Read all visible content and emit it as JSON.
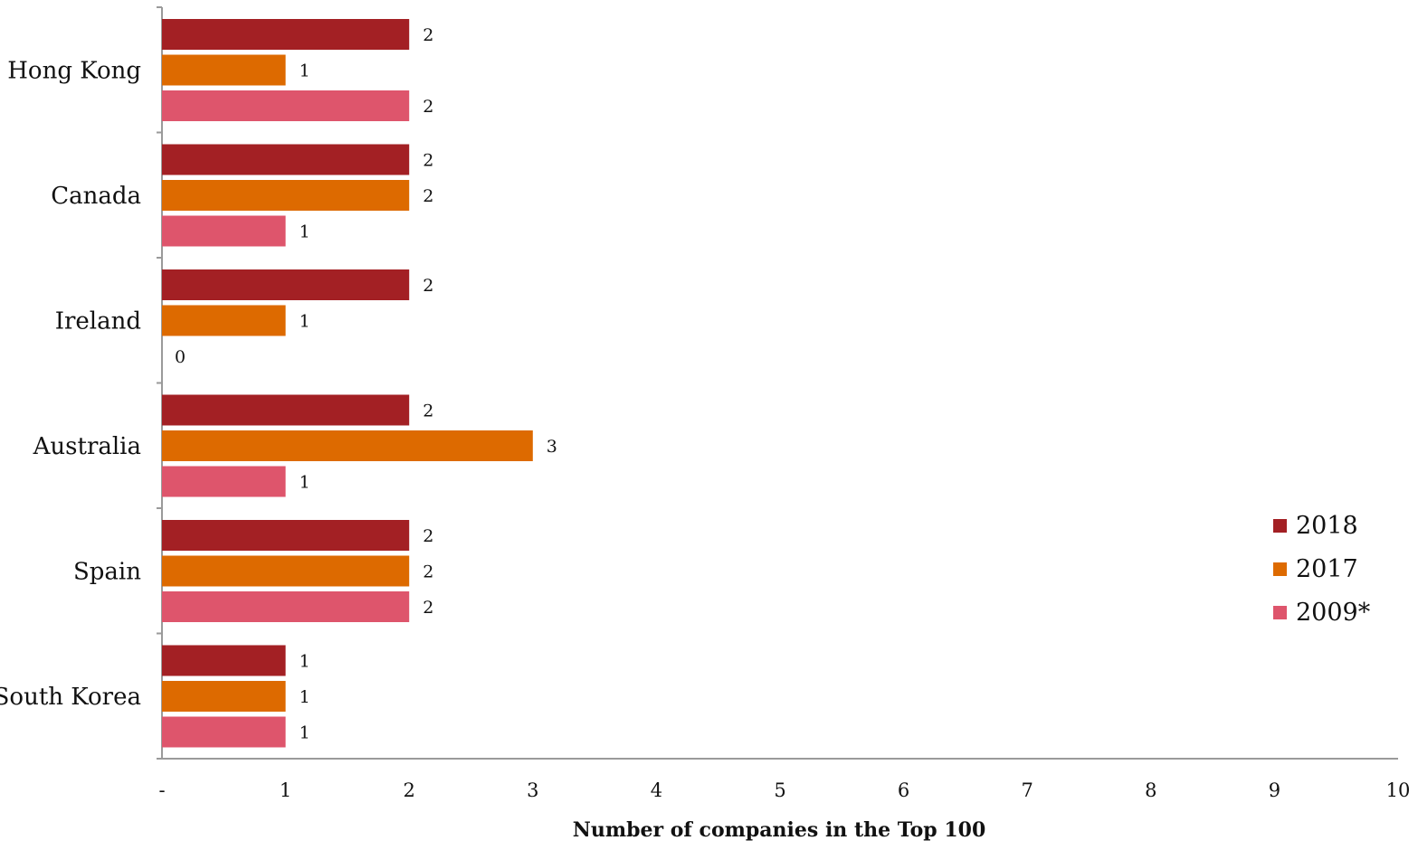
{
  "chart_data": {
    "type": "bar",
    "orientation": "horizontal",
    "categories": [
      "Hong Kong",
      "Canada",
      "Ireland",
      "Australia",
      "Spain",
      "South Korea"
    ],
    "series": [
      {
        "name": "2018",
        "color": "#A32024",
        "values": [
          2,
          2,
          2,
          2,
          2,
          1
        ]
      },
      {
        "name": "2017",
        "color": "#DD6A00",
        "values": [
          1,
          2,
          1,
          3,
          2,
          1
        ]
      },
      {
        "name": "2009*",
        "color": "#DE556C",
        "values": [
          2,
          1,
          0,
          1,
          2,
          1
        ]
      }
    ],
    "x_ticks": [
      "-",
      "1",
      "2",
      "3",
      "4",
      "5",
      "6",
      "7",
      "8",
      "9",
      "10"
    ],
    "xlim": [
      0,
      10
    ],
    "xlabel": "Number of companies in the Top 100",
    "grid": false,
    "legend_position": "right"
  }
}
